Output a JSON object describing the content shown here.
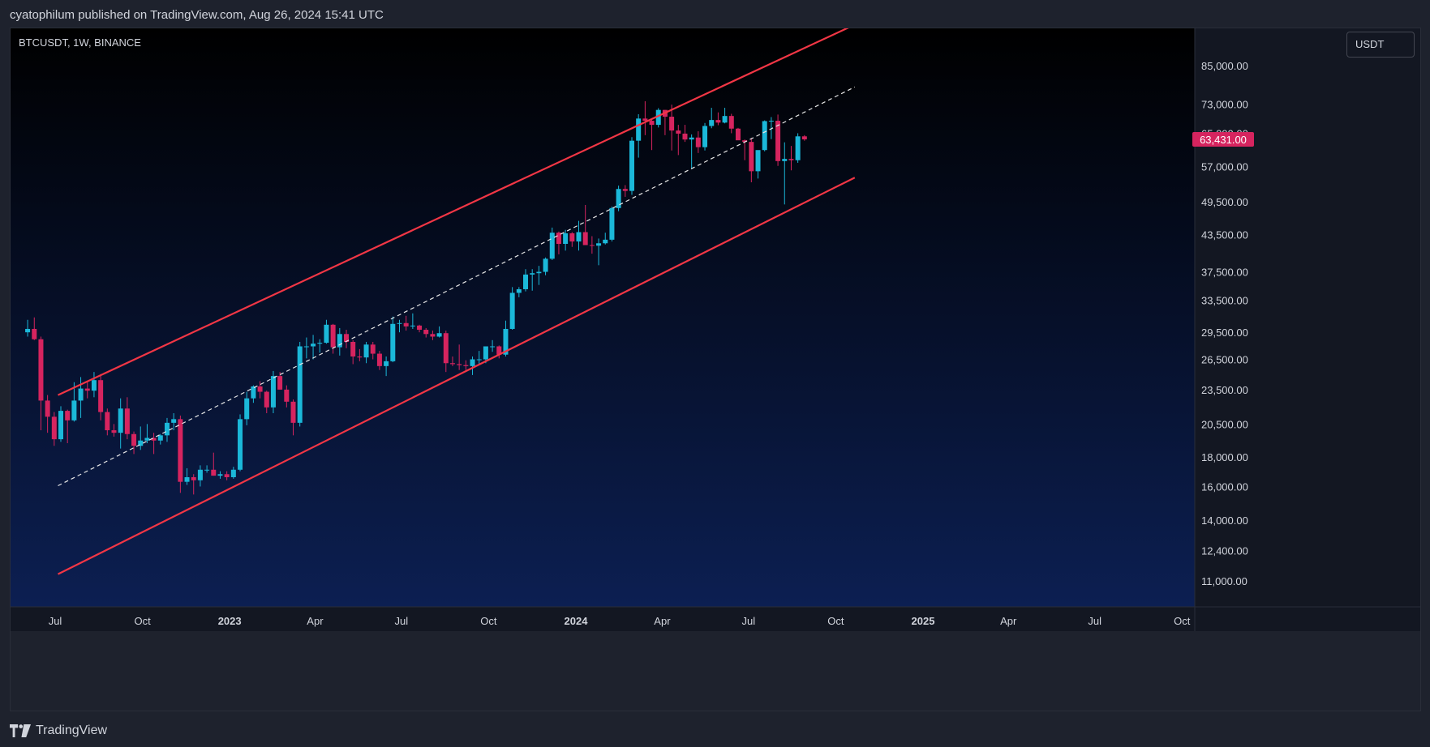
{
  "header": {
    "published_text": "cyatophilum published on TradingView.com, Aug 26, 2024 15:41 UTC"
  },
  "chart_header": {
    "symbol": "BTCUSDT, 1W, BINANCE",
    "currency_button": "USDT"
  },
  "footer": {
    "brand": "TradingView"
  },
  "colors": {
    "bg_top": "#000000",
    "bg_bottom": "#0c1f52",
    "up": "#1bb8d9",
    "down": "#d6245f",
    "channel": "#f23645",
    "midline": "#e8e8e8",
    "text": "#d1d4dc"
  },
  "chart_data": {
    "type": "candlestick",
    "symbol": "BTCUSDT",
    "interval": "1W",
    "exchange": "BINANCE",
    "y_scale": "log",
    "y_ticks": [
      {
        "value": 85000,
        "label": "85,000.00"
      },
      {
        "value": 73000,
        "label": "73,000.00"
      },
      {
        "value": 65000,
        "label": "65,000.00"
      },
      {
        "value": 57000,
        "label": "57,000.00"
      },
      {
        "value": 49500,
        "label": "49,500.00"
      },
      {
        "value": 43500,
        "label": "43,500.00"
      },
      {
        "value": 37500,
        "label": "37,500.00"
      },
      {
        "value": 33500,
        "label": "33,500.00"
      },
      {
        "value": 29500,
        "label": "29,500.00"
      },
      {
        "value": 26500,
        "label": "26,500.00"
      },
      {
        "value": 23500,
        "label": "23,500.00"
      },
      {
        "value": 20500,
        "label": "20,500.00"
      },
      {
        "value": 18000,
        "label": "18,000.00"
      },
      {
        "value": 16000,
        "label": "16,000.00"
      },
      {
        "value": 14000,
        "label": "14,000.00"
      },
      {
        "value": 12400,
        "label": "12,400.00"
      },
      {
        "value": 11000,
        "label": "11,000.00"
      }
    ],
    "x_ticks": [
      {
        "date": "2022-07-01",
        "label": "Jul",
        "bold": false
      },
      {
        "date": "2022-10-01",
        "label": "Oct",
        "bold": false
      },
      {
        "date": "2023-01-01",
        "label": "2023",
        "bold": true
      },
      {
        "date": "2023-04-01",
        "label": "Apr",
        "bold": false
      },
      {
        "date": "2023-07-01",
        "label": "Jul",
        "bold": false
      },
      {
        "date": "2023-10-01",
        "label": "Oct",
        "bold": false
      },
      {
        "date": "2024-01-01",
        "label": "2024",
        "bold": true
      },
      {
        "date": "2024-04-01",
        "label": "Apr",
        "bold": false
      },
      {
        "date": "2024-07-01",
        "label": "Jul",
        "bold": false
      },
      {
        "date": "2024-10-01",
        "label": "Oct",
        "bold": false
      },
      {
        "date": "2025-01-01",
        "label": "2025",
        "bold": true
      },
      {
        "date": "2025-04-01",
        "label": "Apr",
        "bold": false
      },
      {
        "date": "2025-07-01",
        "label": "Jul",
        "bold": false
      },
      {
        "date": "2025-10-01",
        "label": "Oct",
        "bold": false
      }
    ],
    "last_price": {
      "value": 63431,
      "label": "63,431.00"
    },
    "candles": [
      {
        "date": "2022-05-30",
        "o": 29500,
        "h": 31000,
        "l": 29000,
        "c": 29900
      },
      {
        "date": "2022-06-06",
        "o": 29900,
        "h": 31300,
        "l": 28600,
        "c": 28700
      },
      {
        "date": "2022-06-13",
        "o": 28700,
        "h": 29000,
        "l": 20000,
        "c": 22500
      },
      {
        "date": "2022-06-20",
        "o": 22500,
        "h": 23000,
        "l": 19800,
        "c": 21100
      },
      {
        "date": "2022-06-27",
        "o": 21100,
        "h": 21500,
        "l": 18800,
        "c": 19300
      },
      {
        "date": "2022-07-04",
        "o": 19300,
        "h": 22000,
        "l": 19100,
        "c": 21600
      },
      {
        "date": "2022-07-11",
        "o": 21600,
        "h": 21700,
        "l": 19000,
        "c": 20800
      },
      {
        "date": "2022-07-18",
        "o": 20800,
        "h": 24200,
        "l": 20700,
        "c": 22500
      },
      {
        "date": "2022-07-25",
        "o": 22500,
        "h": 24700,
        "l": 21000,
        "c": 23600
      },
      {
        "date": "2022-08-01",
        "o": 23600,
        "h": 24200,
        "l": 22700,
        "c": 23400
      },
      {
        "date": "2022-08-08",
        "o": 23400,
        "h": 25200,
        "l": 22800,
        "c": 24400
      },
      {
        "date": "2022-08-15",
        "o": 24400,
        "h": 25000,
        "l": 20800,
        "c": 21500
      },
      {
        "date": "2022-08-22",
        "o": 21500,
        "h": 21800,
        "l": 19600,
        "c": 20000
      },
      {
        "date": "2022-08-29",
        "o": 20000,
        "h": 20500,
        "l": 19500,
        "c": 19800
      },
      {
        "date": "2022-09-05",
        "o": 19800,
        "h": 22700,
        "l": 18600,
        "c": 21800
      },
      {
        "date": "2022-09-12",
        "o": 21800,
        "h": 22800,
        "l": 19300,
        "c": 19700
      },
      {
        "date": "2022-09-19",
        "o": 19700,
        "h": 19900,
        "l": 18200,
        "c": 18800
      },
      {
        "date": "2022-09-26",
        "o": 18800,
        "h": 20300,
        "l": 18500,
        "c": 19200
      },
      {
        "date": "2022-10-03",
        "o": 19200,
        "h": 20500,
        "l": 19000,
        "c": 19400
      },
      {
        "date": "2022-10-10",
        "o": 19400,
        "h": 19800,
        "l": 18200,
        "c": 19200
      },
      {
        "date": "2022-10-17",
        "o": 19200,
        "h": 19700,
        "l": 18900,
        "c": 19600
      },
      {
        "date": "2022-10-24",
        "o": 19600,
        "h": 21000,
        "l": 19100,
        "c": 20600
      },
      {
        "date": "2022-10-31",
        "o": 20600,
        "h": 21400,
        "l": 20000,
        "c": 20900
      },
      {
        "date": "2022-11-07",
        "o": 20900,
        "h": 21200,
        "l": 15600,
        "c": 16300
      },
      {
        "date": "2022-11-14",
        "o": 16300,
        "h": 17200,
        "l": 16100,
        "c": 16600
      },
      {
        "date": "2022-11-21",
        "o": 16600,
        "h": 16800,
        "l": 15500,
        "c": 16400
      },
      {
        "date": "2022-11-28",
        "o": 16400,
        "h": 17400,
        "l": 16000,
        "c": 17100
      },
      {
        "date": "2022-12-05",
        "o": 17100,
        "h": 17400,
        "l": 16900,
        "c": 17100
      },
      {
        "date": "2022-12-12",
        "o": 17100,
        "h": 18300,
        "l": 16700,
        "c": 16700
      },
      {
        "date": "2022-12-19",
        "o": 16700,
        "h": 17000,
        "l": 16500,
        "c": 16800
      },
      {
        "date": "2022-12-26",
        "o": 16800,
        "h": 17000,
        "l": 16400,
        "c": 16600
      },
      {
        "date": "2023-01-02",
        "o": 16600,
        "h": 17300,
        "l": 16500,
        "c": 17100
      },
      {
        "date": "2023-01-09",
        "o": 17100,
        "h": 21300,
        "l": 17000,
        "c": 20900
      },
      {
        "date": "2023-01-16",
        "o": 20900,
        "h": 23300,
        "l": 20400,
        "c": 22700
      },
      {
        "date": "2023-01-23",
        "o": 22700,
        "h": 23900,
        "l": 22300,
        "c": 23800
      },
      {
        "date": "2023-01-30",
        "o": 23800,
        "h": 24300,
        "l": 22700,
        "c": 23300
      },
      {
        "date": "2023-02-06",
        "o": 23300,
        "h": 23400,
        "l": 21400,
        "c": 21900
      },
      {
        "date": "2023-02-13",
        "o": 21900,
        "h": 25300,
        "l": 21400,
        "c": 24800
      },
      {
        "date": "2023-02-20",
        "o": 24800,
        "h": 25200,
        "l": 23500,
        "c": 23500
      },
      {
        "date": "2023-02-27",
        "o": 23500,
        "h": 23900,
        "l": 21900,
        "c": 22400
      },
      {
        "date": "2023-03-06",
        "o": 22400,
        "h": 22600,
        "l": 19600,
        "c": 20600
      },
      {
        "date": "2023-03-13",
        "o": 20600,
        "h": 28400,
        "l": 20300,
        "c": 27900
      },
      {
        "date": "2023-03-20",
        "o": 27900,
        "h": 28900,
        "l": 26600,
        "c": 27900
      },
      {
        "date": "2023-03-27",
        "o": 27900,
        "h": 29200,
        "l": 26500,
        "c": 28200
      },
      {
        "date": "2023-04-03",
        "o": 28200,
        "h": 28700,
        "l": 27200,
        "c": 28300
      },
      {
        "date": "2023-04-10",
        "o": 28300,
        "h": 31000,
        "l": 28200,
        "c": 30400
      },
      {
        "date": "2023-04-17",
        "o": 30400,
        "h": 30500,
        "l": 27100,
        "c": 27800
      },
      {
        "date": "2023-04-24",
        "o": 27800,
        "h": 30000,
        "l": 26900,
        "c": 29300
      },
      {
        "date": "2023-05-01",
        "o": 29300,
        "h": 29800,
        "l": 27700,
        "c": 28400
      },
      {
        "date": "2023-05-08",
        "o": 28400,
        "h": 28600,
        "l": 26000,
        "c": 26800
      },
      {
        "date": "2023-05-15",
        "o": 26800,
        "h": 27600,
        "l": 26300,
        "c": 26700
      },
      {
        "date": "2023-05-22",
        "o": 26700,
        "h": 28400,
        "l": 26100,
        "c": 28100
      },
      {
        "date": "2023-05-29",
        "o": 28100,
        "h": 28400,
        "l": 26500,
        "c": 27100
      },
      {
        "date": "2023-06-05",
        "o": 27100,
        "h": 27400,
        "l": 25400,
        "c": 25800
      },
      {
        "date": "2023-06-12",
        "o": 25800,
        "h": 26800,
        "l": 24800,
        "c": 26300
      },
      {
        "date": "2023-06-19",
        "o": 26300,
        "h": 31400,
        "l": 26200,
        "c": 30500
      },
      {
        "date": "2023-06-26",
        "o": 30500,
        "h": 31000,
        "l": 29500,
        "c": 30600
      },
      {
        "date": "2023-07-03",
        "o": 30600,
        "h": 31500,
        "l": 29700,
        "c": 30200
      },
      {
        "date": "2023-07-10",
        "o": 30200,
        "h": 31800,
        "l": 29900,
        "c": 30300
      },
      {
        "date": "2023-07-17",
        "o": 30300,
        "h": 30400,
        "l": 29500,
        "c": 29800
      },
      {
        "date": "2023-07-24",
        "o": 29800,
        "h": 30000,
        "l": 28900,
        "c": 29300
      },
      {
        "date": "2023-07-31",
        "o": 29300,
        "h": 29700,
        "l": 28600,
        "c": 29000
      },
      {
        "date": "2023-08-07",
        "o": 29000,
        "h": 30200,
        "l": 28900,
        "c": 29400
      },
      {
        "date": "2023-08-14",
        "o": 29400,
        "h": 29700,
        "l": 25200,
        "c": 26100
      },
      {
        "date": "2023-08-21",
        "o": 26100,
        "h": 26800,
        "l": 25800,
        "c": 26000
      },
      {
        "date": "2023-08-28",
        "o": 26000,
        "h": 28100,
        "l": 25400,
        "c": 25900
      },
      {
        "date": "2023-09-04",
        "o": 25900,
        "h": 26400,
        "l": 25400,
        "c": 25800
      },
      {
        "date": "2023-09-11",
        "o": 25800,
        "h": 26800,
        "l": 24900,
        "c": 26500
      },
      {
        "date": "2023-09-18",
        "o": 26500,
        "h": 27400,
        "l": 26000,
        "c": 26500
      },
      {
        "date": "2023-09-25",
        "o": 26500,
        "h": 27500,
        "l": 26100,
        "c": 27900
      },
      {
        "date": "2023-10-02",
        "o": 27900,
        "h": 28600,
        "l": 27300,
        "c": 27900
      },
      {
        "date": "2023-10-09",
        "o": 27900,
        "h": 28000,
        "l": 26600,
        "c": 27000
      },
      {
        "date": "2023-10-16",
        "o": 27000,
        "h": 30900,
        "l": 26800,
        "c": 29900
      },
      {
        "date": "2023-10-23",
        "o": 29900,
        "h": 35300,
        "l": 29800,
        "c": 34500
      },
      {
        "date": "2023-10-30",
        "o": 34500,
        "h": 35300,
        "l": 33900,
        "c": 35000
      },
      {
        "date": "2023-11-06",
        "o": 35000,
        "h": 37900,
        "l": 34700,
        "c": 37100
      },
      {
        "date": "2023-11-13",
        "o": 37100,
        "h": 37900,
        "l": 34800,
        "c": 37300
      },
      {
        "date": "2023-11-20",
        "o": 37300,
        "h": 38400,
        "l": 35600,
        "c": 37500
      },
      {
        "date": "2023-11-27",
        "o": 37500,
        "h": 39700,
        "l": 37000,
        "c": 39500
      },
      {
        "date": "2023-12-04",
        "o": 39500,
        "h": 44700,
        "l": 39300,
        "c": 43800
      },
      {
        "date": "2023-12-11",
        "o": 43800,
        "h": 44000,
        "l": 40200,
        "c": 41900
      },
      {
        "date": "2023-12-18",
        "o": 41900,
        "h": 44300,
        "l": 40800,
        "c": 43700
      },
      {
        "date": "2023-12-25",
        "o": 43700,
        "h": 43900,
        "l": 41400,
        "c": 42300
      },
      {
        "date": "2024-01-01",
        "o": 42300,
        "h": 45900,
        "l": 40800,
        "c": 43900
      },
      {
        "date": "2024-01-08",
        "o": 43900,
        "h": 48900,
        "l": 41800,
        "c": 41700
      },
      {
        "date": "2024-01-15",
        "o": 41700,
        "h": 43200,
        "l": 40300,
        "c": 41600
      },
      {
        "date": "2024-01-22",
        "o": 41600,
        "h": 42800,
        "l": 38500,
        "c": 42000
      },
      {
        "date": "2024-01-29",
        "o": 42000,
        "h": 43800,
        "l": 41800,
        "c": 42600
      },
      {
        "date": "2024-02-05",
        "o": 42600,
        "h": 48600,
        "l": 42300,
        "c": 48300
      },
      {
        "date": "2024-02-12",
        "o": 48300,
        "h": 52800,
        "l": 47700,
        "c": 52100
      },
      {
        "date": "2024-02-19",
        "o": 52100,
        "h": 52900,
        "l": 50500,
        "c": 51700
      },
      {
        "date": "2024-02-26",
        "o": 51700,
        "h": 64000,
        "l": 50900,
        "c": 63100
      },
      {
        "date": "2024-03-04",
        "o": 63100,
        "h": 70100,
        "l": 59000,
        "c": 68900
      },
      {
        "date": "2024-03-11",
        "o": 68900,
        "h": 73800,
        "l": 64500,
        "c": 68300
      },
      {
        "date": "2024-03-18",
        "o": 68300,
        "h": 68900,
        "l": 60800,
        "c": 67200
      },
      {
        "date": "2024-03-25",
        "o": 67200,
        "h": 71800,
        "l": 66500,
        "c": 71300
      },
      {
        "date": "2024-04-01",
        "o": 71300,
        "h": 71300,
        "l": 64500,
        "c": 69400
      },
      {
        "date": "2024-04-08",
        "o": 69400,
        "h": 72800,
        "l": 60700,
        "c": 65700
      },
      {
        "date": "2024-04-15",
        "o": 65700,
        "h": 67200,
        "l": 59600,
        "c": 64900
      },
      {
        "date": "2024-04-22",
        "o": 64900,
        "h": 67200,
        "l": 62800,
        "c": 63400
      },
      {
        "date": "2024-04-29",
        "o": 63400,
        "h": 64700,
        "l": 56500,
        "c": 63900
      },
      {
        "date": "2024-05-06",
        "o": 63900,
        "h": 65500,
        "l": 60100,
        "c": 61500
      },
      {
        "date": "2024-05-13",
        "o": 61500,
        "h": 67700,
        "l": 60700,
        "c": 66900
      },
      {
        "date": "2024-05-20",
        "o": 66900,
        "h": 71900,
        "l": 66300,
        "c": 68500
      },
      {
        "date": "2024-05-27",
        "o": 68500,
        "h": 70600,
        "l": 67100,
        "c": 67800
      },
      {
        "date": "2024-06-03",
        "o": 67800,
        "h": 71900,
        "l": 67600,
        "c": 69600
      },
      {
        "date": "2024-06-10",
        "o": 69600,
        "h": 70200,
        "l": 65000,
        "c": 66200
      },
      {
        "date": "2024-06-17",
        "o": 66200,
        "h": 66400,
        "l": 63400,
        "c": 63200
      },
      {
        "date": "2024-06-24",
        "o": 63200,
        "h": 63400,
        "l": 58400,
        "c": 62800
      },
      {
        "date": "2024-07-01",
        "o": 62800,
        "h": 63800,
        "l": 53500,
        "c": 55900
      },
      {
        "date": "2024-07-08",
        "o": 55900,
        "h": 60300,
        "l": 54300,
        "c": 60800
      },
      {
        "date": "2024-07-15",
        "o": 60800,
        "h": 68400,
        "l": 60500,
        "c": 68200
      },
      {
        "date": "2024-07-22",
        "o": 68200,
        "h": 69300,
        "l": 63500,
        "c": 68300
      },
      {
        "date": "2024-07-29",
        "o": 68300,
        "h": 70000,
        "l": 57100,
        "c": 58200
      },
      {
        "date": "2024-08-05",
        "o": 58200,
        "h": 62700,
        "l": 49000,
        "c": 58700
      },
      {
        "date": "2024-08-12",
        "o": 58700,
        "h": 61800,
        "l": 56100,
        "c": 58400
      },
      {
        "date": "2024-08-19",
        "o": 58400,
        "h": 65000,
        "l": 57800,
        "c": 64200
      },
      {
        "date": "2024-08-26",
        "o": 64200,
        "h": 64500,
        "l": 63100,
        "c": 63431
      }
    ],
    "annotations": [
      {
        "name": "channel-upper",
        "style": "solid",
        "from": {
          "date": "2022-07-04",
          "value": 23000
        },
        "to": {
          "date": "2024-10-21",
          "value": 100000
        }
      },
      {
        "name": "channel-mid",
        "style": "dashed",
        "from": {
          "date": "2022-07-04",
          "value": 16050
        },
        "to": {
          "date": "2024-10-21",
          "value": 78100
        }
      },
      {
        "name": "channel-lower",
        "style": "solid",
        "from": {
          "date": "2022-07-04",
          "value": 11300
        },
        "to": {
          "date": "2024-10-21",
          "value": 54500
        }
      }
    ]
  }
}
